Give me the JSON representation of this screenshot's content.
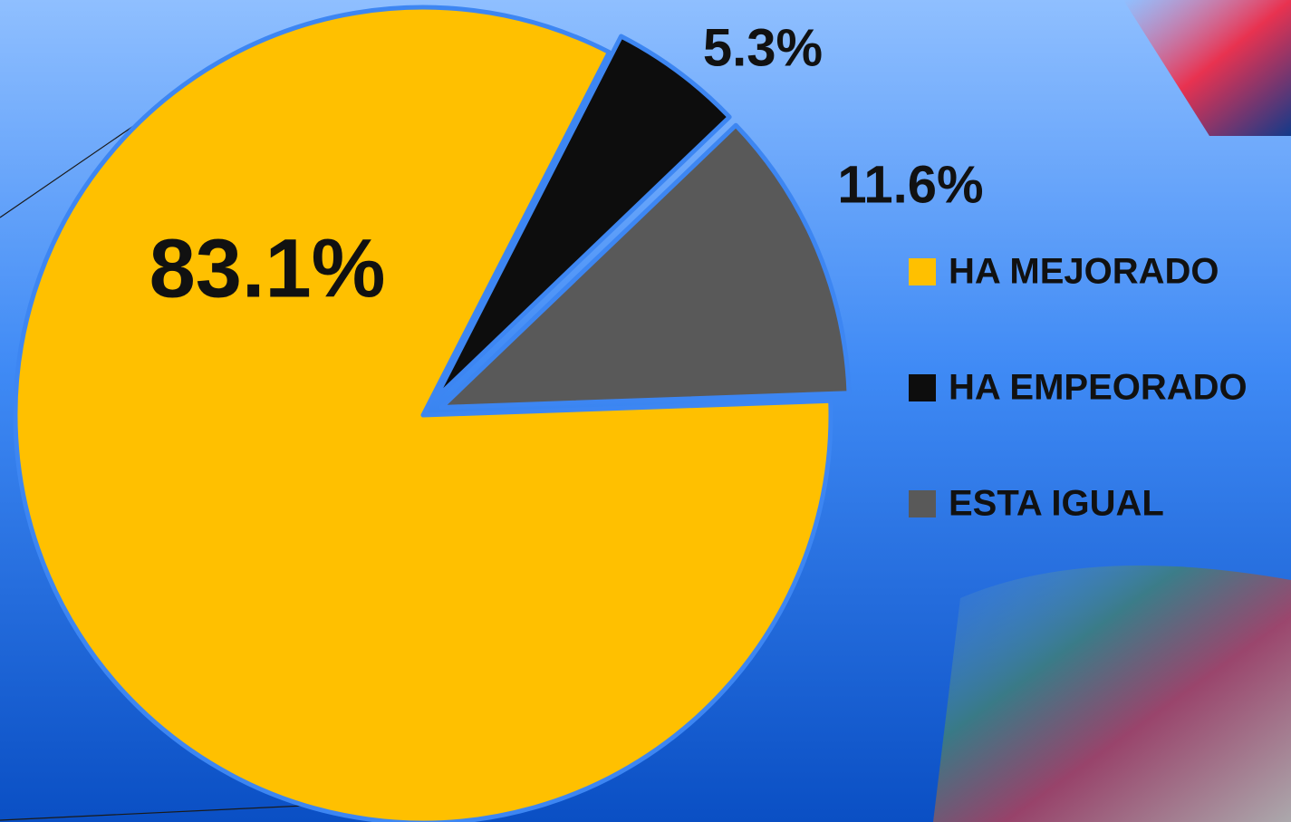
{
  "chart_data": {
    "type": "pie",
    "categories": [
      "HA MEJORADO",
      "HA EMPEORADO",
      "ESTA IGUAL"
    ],
    "values": [
      83.1,
      5.3,
      11.6
    ],
    "value_labels": [
      "83.1%",
      "5.3%",
      "11.6%"
    ],
    "colors": [
      "#ffc000",
      "#0d0d0d",
      "#595959"
    ],
    "legend": "right"
  }
}
